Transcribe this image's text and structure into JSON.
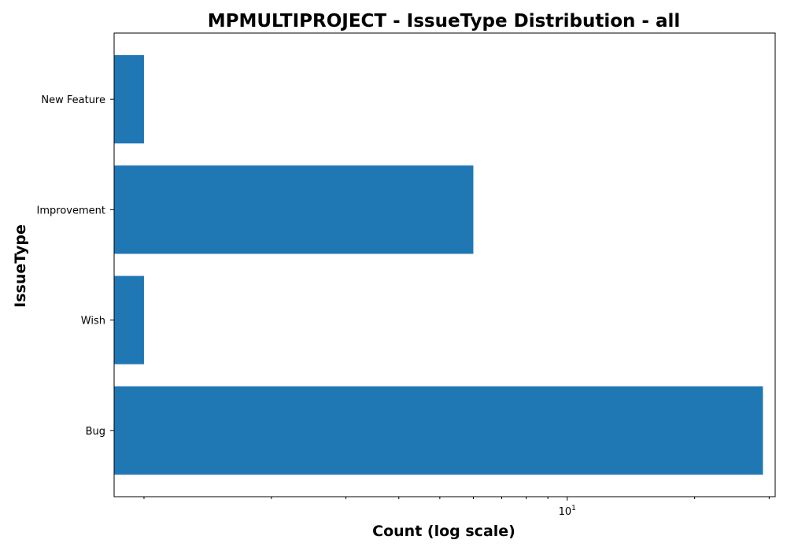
{
  "chart_data": {
    "type": "bar",
    "orientation": "horizontal",
    "title": "MPMULTIPROJECT - IssueType Distribution - all",
    "xlabel": "Count (log scale)",
    "ylabel": "IssueType",
    "x_scale": "log",
    "xlim": [
      0.85,
      31
    ],
    "x_major_ticks": [
      {
        "value": 10,
        "base": "10",
        "exponent": "1"
      }
    ],
    "x_minor_ticks": [
      1,
      2,
      3,
      4,
      5,
      6,
      7,
      8,
      9,
      20,
      30
    ],
    "categories": [
      "Bug",
      "Wish",
      "Improvement",
      "New Feature"
    ],
    "values": [
      29,
      1,
      6,
      1
    ],
    "bar_color": "#1f77b4",
    "grid": false,
    "legend": "none"
  }
}
